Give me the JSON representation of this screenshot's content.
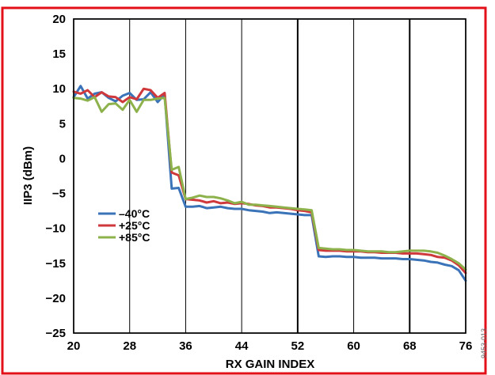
{
  "chart_data": {
    "type": "line",
    "title": "",
    "xlabel": "RX GAIN INDEX",
    "ylabel": "IIP3 (dBm)",
    "xlim": [
      20,
      76
    ],
    "ylim": [
      -25,
      20
    ],
    "x_ticks": [
      "20",
      "28",
      "36",
      "44",
      "52",
      "60",
      "68",
      "76"
    ],
    "y_ticks": [
      "20",
      "15",
      "10",
      "5",
      "0",
      "−5",
      "−10",
      "−15",
      "−20",
      "−25"
    ],
    "major_vertical_gridlines": [
      52,
      68
    ],
    "legend_position": "left-center",
    "figure_id": "9453-013",
    "series": [
      {
        "name": "–40°C",
        "color": "#3b73b9",
        "x": [
          20,
          21,
          22,
          23,
          24,
          25,
          26,
          27,
          28,
          29,
          30,
          31,
          32,
          33,
          34,
          35,
          36,
          37,
          38,
          39,
          40,
          41,
          42,
          43,
          44,
          45,
          46,
          47,
          48,
          49,
          50,
          51,
          52,
          53,
          54,
          55,
          56,
          57,
          58,
          59,
          60,
          61,
          62,
          63,
          64,
          65,
          66,
          67,
          68,
          69,
          70,
          71,
          72,
          73,
          74,
          75,
          76
        ],
        "values": [
          8.8,
          10.4,
          8.6,
          9.3,
          9.5,
          8.7,
          8.2,
          9.0,
          9.4,
          8.4,
          8.5,
          9.5,
          8.1,
          9.2,
          -4.3,
          -4.2,
          -6.9,
          -6.9,
          -6.8,
          -7.1,
          -7.0,
          -6.9,
          -7.1,
          -7.2,
          -7.2,
          -7.4,
          -7.5,
          -7.6,
          -7.8,
          -7.7,
          -7.8,
          -7.9,
          -8.0,
          -8.1,
          -8.1,
          -14.0,
          -14.1,
          -14.0,
          -14.0,
          -14.1,
          -14.1,
          -14.2,
          -14.2,
          -14.2,
          -14.3,
          -14.3,
          -14.3,
          -14.4,
          -14.4,
          -14.5,
          -14.6,
          -14.8,
          -14.9,
          -15.2,
          -15.4,
          -16.0,
          -17.5
        ]
      },
      {
        "name": "+25°C",
        "color": "#d0393b",
        "x": [
          20,
          21,
          22,
          23,
          24,
          25,
          26,
          27,
          28,
          29,
          30,
          31,
          32,
          33,
          34,
          35,
          36,
          37,
          38,
          39,
          40,
          41,
          42,
          43,
          44,
          45,
          46,
          47,
          48,
          49,
          50,
          51,
          52,
          53,
          54,
          55,
          56,
          57,
          58,
          59,
          60,
          61,
          62,
          63,
          64,
          65,
          66,
          67,
          68,
          69,
          70,
          71,
          72,
          73,
          74,
          75,
          76
        ],
        "values": [
          9.6,
          9.3,
          9.8,
          8.8,
          9.5,
          8.9,
          8.8,
          8.1,
          8.8,
          8.5,
          10.0,
          9.8,
          8.7,
          9.4,
          -2.0,
          -2.4,
          -5.8,
          -5.9,
          -6.0,
          -6.3,
          -6.1,
          -6.4,
          -6.3,
          -6.5,
          -6.4,
          -6.5,
          -6.7,
          -6.8,
          -7.0,
          -7.0,
          -7.1,
          -7.2,
          -7.4,
          -7.5,
          -7.7,
          -13.1,
          -13.2,
          -13.2,
          -13.2,
          -13.3,
          -13.3,
          -13.3,
          -13.4,
          -13.4,
          -13.5,
          -13.5,
          -13.5,
          -13.6,
          -13.6,
          -13.6,
          -13.7,
          -13.8,
          -14.1,
          -14.2,
          -14.6,
          -15.3,
          -16.4
        ]
      },
      {
        "name": "+85°C",
        "color": "#8db24b",
        "x": [
          20,
          21,
          22,
          23,
          24,
          25,
          26,
          27,
          28,
          29,
          30,
          31,
          32,
          33,
          34,
          35,
          36,
          37,
          38,
          39,
          40,
          41,
          42,
          43,
          44,
          45,
          46,
          47,
          48,
          49,
          50,
          51,
          52,
          53,
          54,
          55,
          56,
          57,
          58,
          59,
          60,
          61,
          62,
          63,
          64,
          65,
          66,
          67,
          68,
          69,
          70,
          71,
          72,
          73,
          74,
          75,
          76
        ],
        "values": [
          8.7,
          8.6,
          8.3,
          8.8,
          6.7,
          7.8,
          7.9,
          7.0,
          8.4,
          6.7,
          8.4,
          8.4,
          8.6,
          8.7,
          -1.6,
          -1.2,
          -5.8,
          -5.6,
          -5.3,
          -5.5,
          -5.5,
          -5.7,
          -6.0,
          -6.4,
          -6.2,
          -6.6,
          -6.6,
          -6.7,
          -6.8,
          -6.9,
          -7.0,
          -7.1,
          -7.2,
          -7.3,
          -7.4,
          -12.8,
          -12.9,
          -13.0,
          -13.0,
          -13.1,
          -13.1,
          -13.2,
          -13.3,
          -13.3,
          -13.3,
          -13.4,
          -13.4,
          -13.3,
          -13.2,
          -13.2,
          -13.2,
          -13.3,
          -13.5,
          -13.9,
          -14.4,
          -15.0,
          -15.9
        ]
      }
    ]
  }
}
